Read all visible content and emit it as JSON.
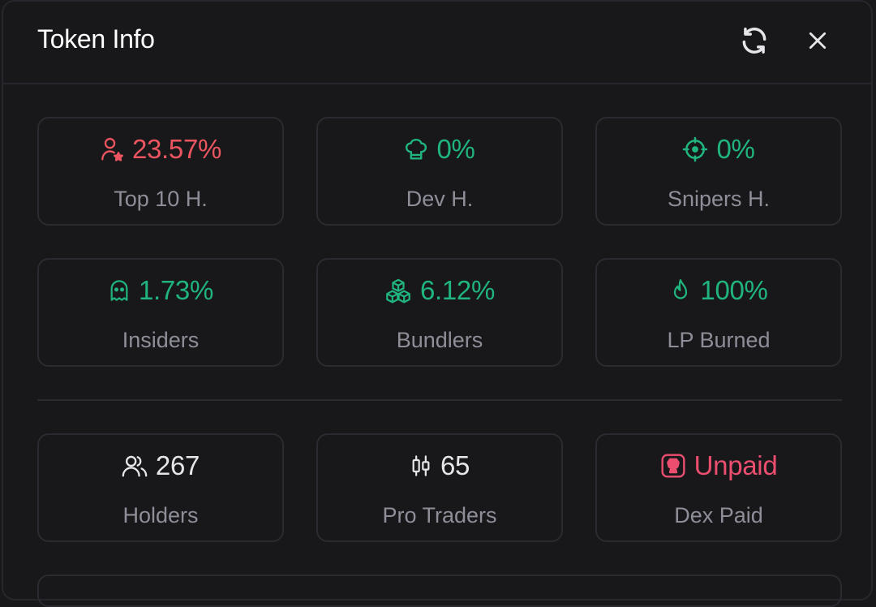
{
  "header": {
    "title": "Token Info",
    "refresh_icon": "refresh-icon",
    "close_icon": "close-icon"
  },
  "colors": {
    "red": "#ea5560",
    "green": "#20b47e",
    "white": "#e6e6ea",
    "pink": "#ec4e6f",
    "label": "#8e8e99"
  },
  "stats": [
    {
      "value": "23.57%",
      "label": "Top 10 H.",
      "icon": "user-star-icon",
      "tone": "red"
    },
    {
      "value": "0%",
      "label": "Dev H.",
      "icon": "chef-hat-icon",
      "tone": "green"
    },
    {
      "value": "0%",
      "label": "Snipers H.",
      "icon": "crosshair-icon",
      "tone": "green"
    },
    {
      "value": "1.73%",
      "label": "Insiders",
      "icon": "ghost-icon",
      "tone": "green"
    },
    {
      "value": "6.12%",
      "label": "Bundlers",
      "icon": "boxes-icon",
      "tone": "green"
    },
    {
      "value": "100%",
      "label": "LP Burned",
      "icon": "flame-icon",
      "tone": "green"
    }
  ],
  "metrics": [
    {
      "value": "267",
      "label": "Holders",
      "icon": "users-icon",
      "tone": "white"
    },
    {
      "value": "65",
      "label": "Pro Traders",
      "icon": "candlestick-icon",
      "tone": "white"
    },
    {
      "value": "Unpaid",
      "label": "Dex Paid",
      "icon": "dex-badge-icon",
      "tone": "pink"
    }
  ]
}
